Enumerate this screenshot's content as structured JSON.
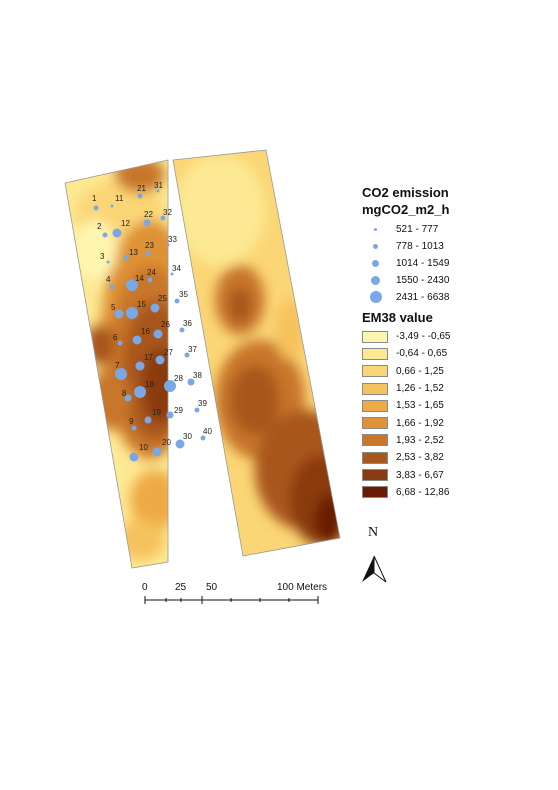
{
  "legend": {
    "co2_title": "CO2 emission",
    "co2_unit": "mgCO2_m2_h",
    "co2_classes": [
      {
        "label": "521 - 777",
        "size_rank": 1
      },
      {
        "label": "778 - 1013",
        "size_rank": 2
      },
      {
        "label": "1014 - 1549",
        "size_rank": 3
      },
      {
        "label": "1550 - 2430",
        "size_rank": 4
      },
      {
        "label": "2431 - 6638",
        "size_rank": 5
      }
    ],
    "em38_title": "EM38 value",
    "em38_classes": [
      {
        "label": "-3,49 - -0,65",
        "color": "#fef6b0"
      },
      {
        "label": "-0,64 - 0,65",
        "color": "#fde993"
      },
      {
        "label": "0,66 - 1,25",
        "color": "#fbd676"
      },
      {
        "label": "1,26 - 1,52",
        "color": "#f6c25d"
      },
      {
        "label": "1,53 - 1,65",
        "color": "#eeaa45"
      },
      {
        "label": "1,66 - 1,92",
        "color": "#df9236"
      },
      {
        "label": "1,93 - 2,52",
        "color": "#c8762a"
      },
      {
        "label": "2,53 - 3,82",
        "color": "#a9571c"
      },
      {
        "label": "3,83 - 6,67",
        "color": "#8a3a10"
      },
      {
        "label": "6,68 - 12,86",
        "color": "#6b1a06"
      }
    ]
  },
  "north_arrow": {
    "letter": "N"
  },
  "scale_bar": {
    "labels": [
      "0",
      "25",
      "50",
      "100 Meters"
    ]
  },
  "points": [
    {
      "id": "1",
      "class": 2
    },
    {
      "id": "2",
      "class": 2
    },
    {
      "id": "3",
      "class": 1
    },
    {
      "id": "4",
      "class": 2
    },
    {
      "id": "5",
      "class": 4
    },
    {
      "id": "6",
      "class": 2
    },
    {
      "id": "7",
      "class": 5
    },
    {
      "id": "8",
      "class": 3
    },
    {
      "id": "9",
      "class": 2
    },
    {
      "id": "10",
      "class": 4
    },
    {
      "id": "11",
      "class": 1
    },
    {
      "id": "12",
      "class": 4
    },
    {
      "id": "13",
      "class": 2
    },
    {
      "id": "14",
      "class": 5
    },
    {
      "id": "15",
      "class": 5
    },
    {
      "id": "16",
      "class": 4
    },
    {
      "id": "17",
      "class": 4
    },
    {
      "id": "18",
      "class": 5
    },
    {
      "id": "19",
      "class": 3
    },
    {
      "id": "20",
      "class": 4
    },
    {
      "id": "21",
      "class": 2
    },
    {
      "id": "22",
      "class": 3
    },
    {
      "id": "23",
      "class": 2
    },
    {
      "id": "24",
      "class": 2
    },
    {
      "id": "25",
      "class": 4
    },
    {
      "id": "26",
      "class": 4
    },
    {
      "id": "27",
      "class": 4
    },
    {
      "id": "28",
      "class": 5
    },
    {
      "id": "29",
      "class": 3
    },
    {
      "id": "30",
      "class": 4
    },
    {
      "id": "31",
      "class": 1
    },
    {
      "id": "32",
      "class": 2
    },
    {
      "id": "33",
      "class": 1
    },
    {
      "id": "34",
      "class": 1
    },
    {
      "id": "35",
      "class": 2
    },
    {
      "id": "36",
      "class": 2
    },
    {
      "id": "37",
      "class": 2
    },
    {
      "id": "38",
      "class": 3
    },
    {
      "id": "39",
      "class": 2
    },
    {
      "id": "40",
      "class": 2
    }
  ]
}
